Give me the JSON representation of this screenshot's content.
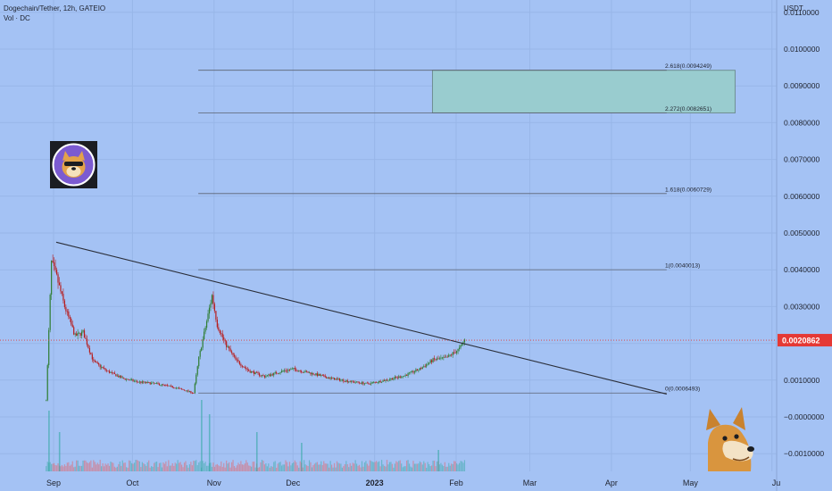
{
  "header": {
    "title": "Dogechain/Tether, 12h, GATEIO",
    "subtitle": "Vol · DC",
    "currency": "USDT"
  },
  "colors": {
    "background": "#a4c2f4",
    "up": "#26a69a",
    "up_body": "#2e7d32",
    "down": "#ef5350",
    "down_body": "#b71c1c",
    "price_tag": "#e53935",
    "target_box": "#99cccf",
    "trendline": "#2a2e39",
    "fib_line": "#5b6270"
  },
  "icons": [
    "dogechain-logo-icon",
    "doge-meme-icon"
  ],
  "chart_data": {
    "type": "candlestick",
    "symbol": "Dogechain/Tether",
    "interval": "12h",
    "exchange": "GATEIO",
    "ylim": [
      -0.0016,
      0.0115
    ],
    "y_tick_labels": [
      "0.0110000",
      "0.0100000",
      "0.0090000",
      "0.0080000",
      "0.0070000",
      "0.0060000",
      "0.0050000",
      "0.0040000",
      "0.0030000",
      "0.0020000",
      "0.0010000",
      "−0.0000000",
      "−0.0010000"
    ],
    "x_tick_labels": [
      "Sep",
      "Oct",
      "Nov",
      "Dec",
      "2023",
      "Feb",
      "Mar",
      "Apr",
      "May",
      "Ju"
    ],
    "last_price": {
      "label": "0.0020862",
      "value": 0.0020862
    },
    "fib_levels": [
      {
        "label": "2.618(0.0094249)",
        "value": 0.0094249
      },
      {
        "label": "2.272(0.0082651)",
        "value": 0.0082651
      },
      {
        "label": "1.618(0.0060729)",
        "value": 0.0060729
      },
      {
        "label": "1(0.0040013)",
        "value": 0.0040013
      },
      {
        "label": "0(0.0006493)",
        "value": 0.0006493
      }
    ],
    "target_zone": {
      "low": 0.0082651,
      "high": 0.0094249,
      "from": "2023-01-23",
      "to": "2023-05-18"
    },
    "trendline": {
      "start": {
        "date": "2022-09-02",
        "value": 0.00475
      },
      "end": {
        "date": "2023-04-22",
        "value": 0.00062
      }
    },
    "price_path": [
      [
        "2022-08-29",
        0.00045
      ],
      [
        "2022-08-31",
        0.0042
      ],
      [
        "2022-09-02",
        0.0038
      ],
      [
        "2022-09-05",
        0.003
      ],
      [
        "2022-09-09",
        0.0022
      ],
      [
        "2022-09-12",
        0.0023
      ],
      [
        "2022-09-16",
        0.0015
      ],
      [
        "2022-09-21",
        0.00125
      ],
      [
        "2022-09-27",
        0.00105
      ],
      [
        "2022-10-03",
        0.00095
      ],
      [
        "2022-10-10",
        0.0009
      ],
      [
        "2022-10-17",
        0.0008
      ],
      [
        "2022-10-24",
        0.00065
      ],
      [
        "2022-10-26",
        0.0016
      ],
      [
        "2022-10-29",
        0.0026
      ],
      [
        "2022-10-31",
        0.0033
      ],
      [
        "2022-11-02",
        0.0025
      ],
      [
        "2022-11-05",
        0.002
      ],
      [
        "2022-11-09",
        0.00155
      ],
      [
        "2022-11-14",
        0.00125
      ],
      [
        "2022-11-20",
        0.0011
      ],
      [
        "2022-11-27",
        0.00125
      ],
      [
        "2022-12-01",
        0.0013
      ],
      [
        "2022-12-08",
        0.00118
      ],
      [
        "2022-12-15",
        0.00105
      ],
      [
        "2022-12-22",
        0.00097
      ],
      [
        "2022-12-29",
        0.0009
      ],
      [
        "2023-01-05",
        0.001
      ],
      [
        "2023-01-12",
        0.00112
      ],
      [
        "2023-01-18",
        0.0013
      ],
      [
        "2023-01-23",
        0.00155
      ],
      [
        "2023-01-28",
        0.0016
      ],
      [
        "2023-02-02",
        0.00185
      ],
      [
        "2023-02-04",
        0.00209
      ]
    ],
    "volume_spikes": [
      {
        "date": "2022-08-30",
        "level": 0.85
      },
      {
        "date": "2022-09-03",
        "level": 0.55
      },
      {
        "date": "2022-10-27",
        "level": 1.0
      },
      {
        "date": "2022-10-30",
        "level": 0.8
      },
      {
        "date": "2022-11-17",
        "level": 0.55
      },
      {
        "date": "2022-12-04",
        "level": 0.4
      },
      {
        "date": "2023-01-25",
        "level": 0.3
      }
    ]
  }
}
